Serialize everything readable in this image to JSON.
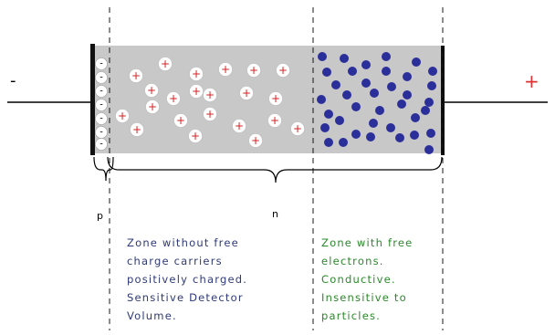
{
  "terminals": {
    "minus": "-",
    "plus": "+"
  },
  "region_labels": {
    "p": "p",
    "n": "n"
  },
  "depleted_zone": {
    "lines": [
      "Zone without free",
      "charge carriers",
      "positively charged.",
      "Sensitive Detector",
      "Volume."
    ]
  },
  "conductive_zone": {
    "lines": [
      "Zone with free",
      "electrons.",
      "Conductive.",
      "Insensitive to",
      "particles."
    ]
  },
  "carriers": {
    "electron_sign": "-",
    "ion_sign": "+"
  },
  "colors": {
    "wire": "#000000",
    "semiconductor": "#c8c8c8",
    "electron": "#2b2f9a",
    "ion_sign": "#d62020",
    "plus_terminal": "#e03030",
    "depleted_text": "#2f3a78",
    "conductive_text": "#2a8a2a"
  }
}
